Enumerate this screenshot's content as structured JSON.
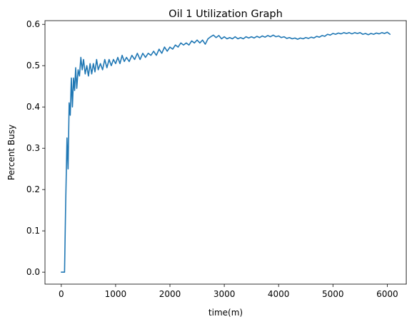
{
  "chart_data": {
    "type": "line",
    "title": "Oil 1 Utilization Graph",
    "xlabel": "time(m)",
    "ylabel": "Percent Busy",
    "xlim": [
      -300,
      6350
    ],
    "ylim": [
      -0.029,
      0.609
    ],
    "x_ticks": [
      0,
      1000,
      2000,
      3000,
      4000,
      5000,
      6000
    ],
    "x_tick_labels": [
      "0",
      "1000",
      "2000",
      "3000",
      "4000",
      "5000",
      "6000"
    ],
    "y_ticks": [
      0.0,
      0.1,
      0.2,
      0.3,
      0.4,
      0.5,
      0.6
    ],
    "y_tick_labels": [
      "0.0",
      "0.1",
      "0.2",
      "0.3",
      "0.4",
      "0.5",
      "0.6"
    ],
    "grid": false,
    "series": [
      {
        "color": "#1f77b4",
        "x": [
          0,
          60,
          80,
          105,
          125,
          145,
          165,
          185,
          205,
          225,
          245,
          265,
          285,
          310,
          335,
          360,
          385,
          410,
          440,
          470,
          500,
          530,
          560,
          590,
          620,
          650,
          680,
          720,
          760,
          800,
          840,
          880,
          920,
          960,
          1000,
          1040,
          1080,
          1120,
          1160,
          1200,
          1250,
          1300,
          1350,
          1400,
          1450,
          1500,
          1550,
          1600,
          1650,
          1700,
          1750,
          1800,
          1850,
          1900,
          1950,
          2000,
          2050,
          2100,
          2150,
          2200,
          2250,
          2300,
          2350,
          2400,
          2450,
          2500,
          2550,
          2600,
          2650,
          2700,
          2750,
          2800,
          2850,
          2900,
          2950,
          3000,
          3050,
          3100,
          3150,
          3200,
          3250,
          3300,
          3350,
          3400,
          3450,
          3500,
          3550,
          3600,
          3650,
          3700,
          3750,
          3800,
          3850,
          3900,
          3950,
          4000,
          4050,
          4100,
          4150,
          4200,
          4250,
          4300,
          4350,
          4400,
          4450,
          4500,
          4550,
          4600,
          4650,
          4700,
          4750,
          4800,
          4850,
          4900,
          4950,
          5000,
          5050,
          5100,
          5150,
          5200,
          5250,
          5300,
          5350,
          5400,
          5450,
          5500,
          5550,
          5600,
          5650,
          5700,
          5750,
          5800,
          5850,
          5900,
          5950,
          6000,
          6050
        ],
        "y": [
          0.0,
          0.0,
          0.16,
          0.325,
          0.25,
          0.41,
          0.38,
          0.47,
          0.4,
          0.47,
          0.44,
          0.495,
          0.445,
          0.49,
          0.475,
          0.52,
          0.49,
          0.515,
          0.48,
          0.5,
          0.475,
          0.505,
          0.48,
          0.505,
          0.485,
          0.515,
          0.49,
          0.505,
          0.49,
          0.515,
          0.495,
          0.515,
          0.5,
          0.515,
          0.505,
          0.52,
          0.505,
          0.525,
          0.51,
          0.52,
          0.51,
          0.525,
          0.515,
          0.53,
          0.515,
          0.53,
          0.52,
          0.53,
          0.525,
          0.535,
          0.525,
          0.54,
          0.53,
          0.545,
          0.535,
          0.545,
          0.54,
          0.55,
          0.545,
          0.555,
          0.55,
          0.555,
          0.55,
          0.56,
          0.555,
          0.562,
          0.555,
          0.562,
          0.552,
          0.565,
          0.57,
          0.574,
          0.568,
          0.573,
          0.565,
          0.57,
          0.565,
          0.568,
          0.565,
          0.57,
          0.565,
          0.568,
          0.565,
          0.57,
          0.567,
          0.57,
          0.567,
          0.571,
          0.568,
          0.572,
          0.569,
          0.573,
          0.57,
          0.574,
          0.57,
          0.572,
          0.568,
          0.57,
          0.566,
          0.568,
          0.565,
          0.567,
          0.564,
          0.567,
          0.565,
          0.568,
          0.566,
          0.569,
          0.567,
          0.571,
          0.569,
          0.573,
          0.571,
          0.576,
          0.574,
          0.578,
          0.576,
          0.579,
          0.577,
          0.58,
          0.578,
          0.58,
          0.577,
          0.58,
          0.578,
          0.58,
          0.576,
          0.578,
          0.575,
          0.578,
          0.576,
          0.579,
          0.577,
          0.58,
          0.578,
          0.581,
          0.576
        ]
      }
    ]
  }
}
